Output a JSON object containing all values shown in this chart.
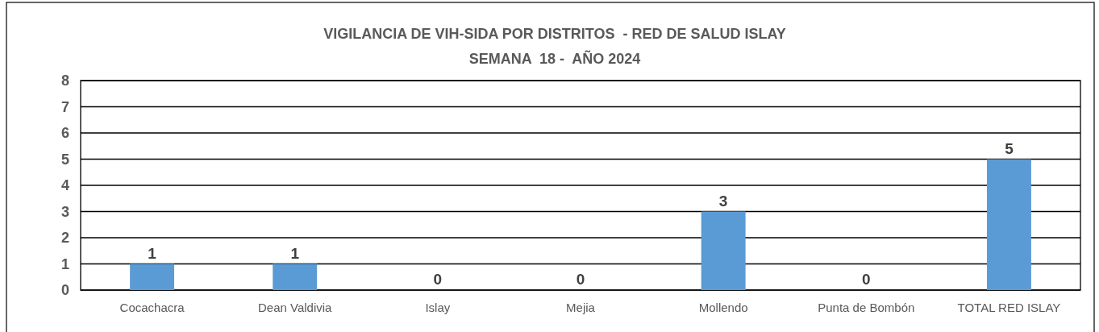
{
  "chart_data": {
    "type": "bar",
    "title": "VIGILANCIA DE VIH-SIDA POR DISTRITOS  - RED DE SALUD ISLAY",
    "subtitle": "SEMANA  18 -  AÑO 2024",
    "categories": [
      "Cocachacra",
      "Dean Valdivia",
      "Islay",
      "Mejia",
      "Mollendo",
      "Punta de Bombón",
      "TOTAL RED ISLAY"
    ],
    "values": [
      1,
      1,
      0,
      0,
      3,
      0,
      5
    ],
    "color": "#5b9bd5",
    "ylim": [
      0,
      8
    ],
    "yticks": [
      0,
      1,
      2,
      3,
      4,
      5,
      6,
      7,
      8
    ],
    "grid": "y",
    "data_labels": true
  }
}
